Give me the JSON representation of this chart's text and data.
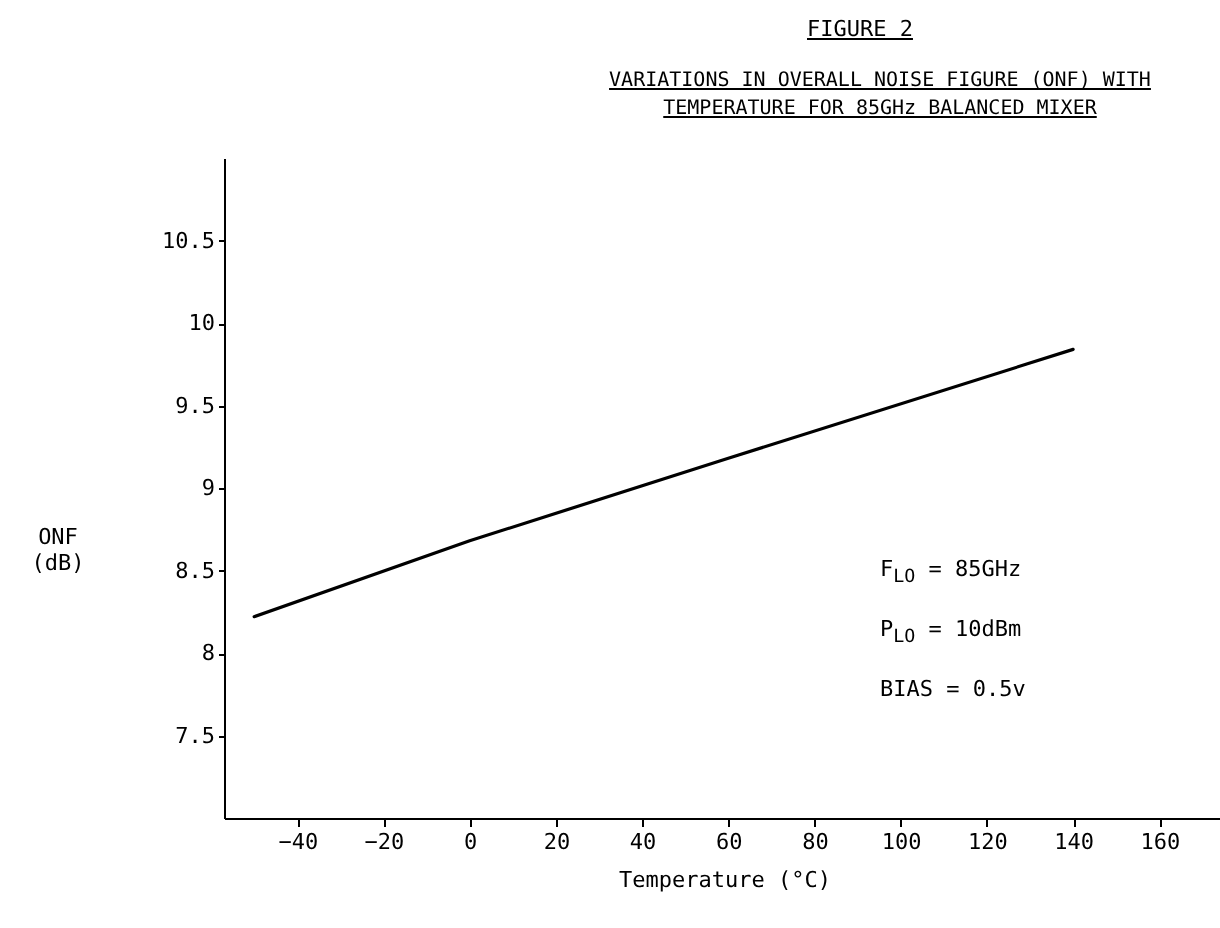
{
  "chart_data": {
    "type": "line",
    "title": "FIGURE 2",
    "subtitle": "VARIATIONS IN OVERALL NOISE FIGURE (ONF) WITH TEMPERATURE FOR 85GHz BALANCED MIXER",
    "xlabel": "Temperature (°C)",
    "ylabel": "ONF (dB)",
    "x": [
      -50,
      0,
      60,
      140
    ],
    "series": [
      {
        "color": "#000000",
        "values": [
          8.22,
          8.68,
          9.18,
          9.84
        ]
      }
    ],
    "xlim": [
      -57,
      175
    ],
    "xticks": [
      -40,
      -20,
      0,
      20,
      40,
      60,
      80,
      100,
      120,
      140,
      160
    ],
    "ylim": [
      7,
      11
    ],
    "yticks": [
      7.5,
      8,
      8.5,
      9,
      9.5,
      10,
      10.5
    ],
    "grid": false,
    "legend": false,
    "marker": "none",
    "line_style": "solid",
    "annotations": [
      "F$_{LO}$ = 85GHz",
      "P$_{LO}$ = 10dBm",
      "BIAS = 0.5v"
    ]
  }
}
